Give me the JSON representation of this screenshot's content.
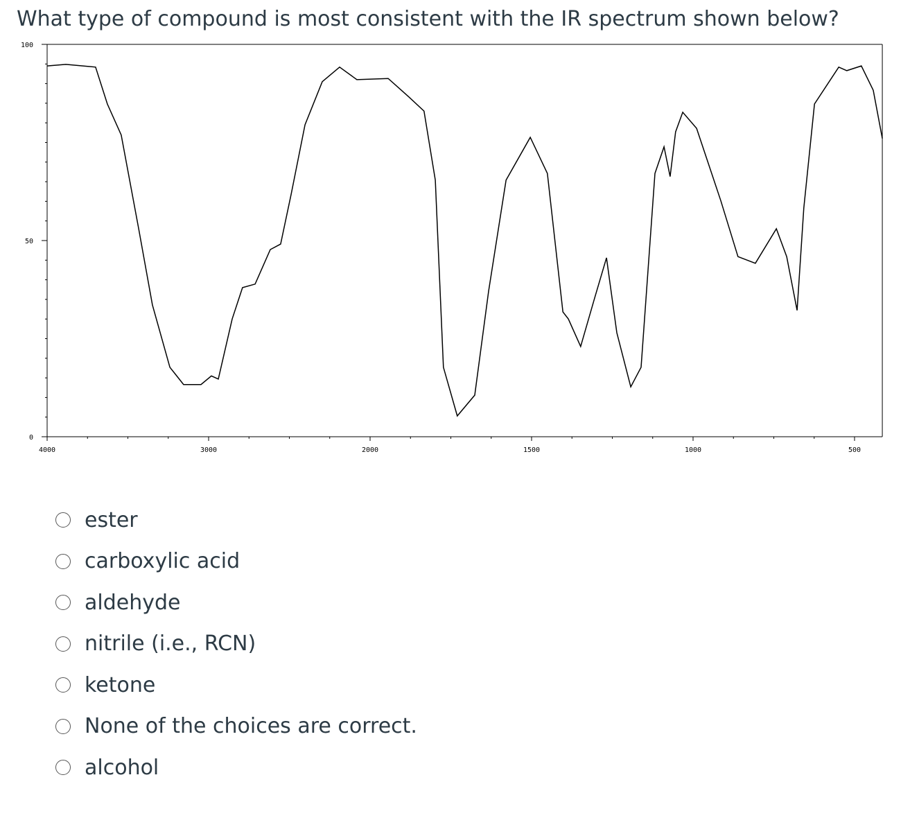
{
  "question": "What type of compound is most consistent with the IR spectrum shown below?",
  "chart_data": {
    "type": "line",
    "color": "#000000",
    "x": [
      4000,
      3884,
      3700,
      3627,
      3541,
      3433,
      3348,
      3240,
      3155,
      3047,
      2983,
      2940,
      2854,
      2790,
      2712,
      2618,
      2554,
      2489,
      2403,
      2296,
      2189,
      2082,
      1944,
      1880,
      1833,
      1798,
      1773,
      1730,
      1676,
      1633,
      1579,
      1504,
      1451,
      1403,
      1386,
      1348,
      1305,
      1268,
      1236,
      1193,
      1161,
      1118,
      1090,
      1071,
      1054,
      1032,
      989,
      914,
      861,
      807,
      742,
      710,
      678,
      657,
      624,
      549,
      524,
      479,
      442,
      414
    ],
    "values": [
      94.5,
      94.9,
      94.2,
      84.8,
      76.9,
      53.0,
      33.6,
      17.7,
      13.3,
      13.3,
      15.5,
      14.7,
      30.0,
      38.0,
      38.9,
      47.7,
      49.1,
      61.8,
      79.5,
      90.5,
      94.2,
      91.0,
      91.3,
      86.6,
      83.0,
      65.4,
      17.7,
      5.3,
      10.6,
      37.1,
      65.4,
      76.3,
      67.1,
      31.8,
      30.0,
      23.0,
      35.3,
      45.6,
      26.5,
      12.7,
      17.7,
      67.1,
      73.9,
      66.3,
      77.7,
      82.7,
      78.6,
      60.1,
      45.9,
      44.2,
      53.0,
      45.9,
      32.2,
      58.3,
      84.8,
      94.2,
      93.3,
      94.5,
      88.3,
      76.0
    ],
    "xlim": [
      4000,
      414
    ],
    "xticks": [
      4000,
      3000,
      2000,
      1500,
      1000,
      500
    ],
    "ylim": [
      0,
      100
    ],
    "yticks": [
      0,
      50,
      100
    ]
  },
  "options": [
    "ester",
    "carboxylic acid",
    "aldehyde",
    "nitrile (i.e., RCN)",
    "ketone",
    "None of the choices are correct.",
    "alcohol"
  ]
}
